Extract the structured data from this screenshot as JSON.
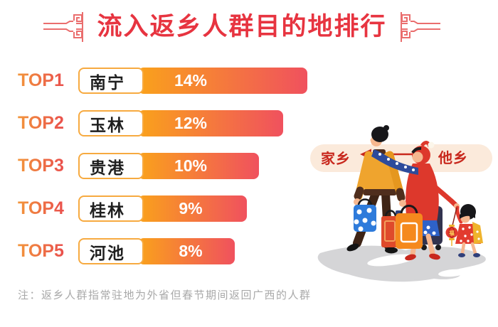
{
  "header": {
    "title": "流入返乡人群目的地排行",
    "title_color": "#E73440",
    "ornament_color": "#EA6E6E"
  },
  "chart_data": {
    "type": "bar",
    "orientation": "horizontal",
    "title": "流入返乡人群目的地排行",
    "rank_labels": [
      "TOP1",
      "TOP2",
      "TOP3",
      "TOP4",
      "TOP5"
    ],
    "categories": [
      "南宁",
      "玉林",
      "贵港",
      "桂林",
      "河池"
    ],
    "values": [
      14,
      12,
      10,
      9,
      8
    ],
    "unit": "%",
    "xlim": [
      0,
      15
    ],
    "legend": "none",
    "grid": "off",
    "bar_gradient_start": "#FAA21B",
    "bar_gradient_end": "#F0515E",
    "label_box_border": "#F7AA40"
  },
  "note": {
    "text": "注：返乡人群指常驻地为外省但春节期间返回广西的人群",
    "color": "#A9A9A9"
  },
  "illustration": {
    "hometown_label": "家乡",
    "away_label": "他乡",
    "lantern_character": "福",
    "arrow_direction": "left",
    "band_color": "#FBEADB",
    "text_color": "#C8281D"
  }
}
